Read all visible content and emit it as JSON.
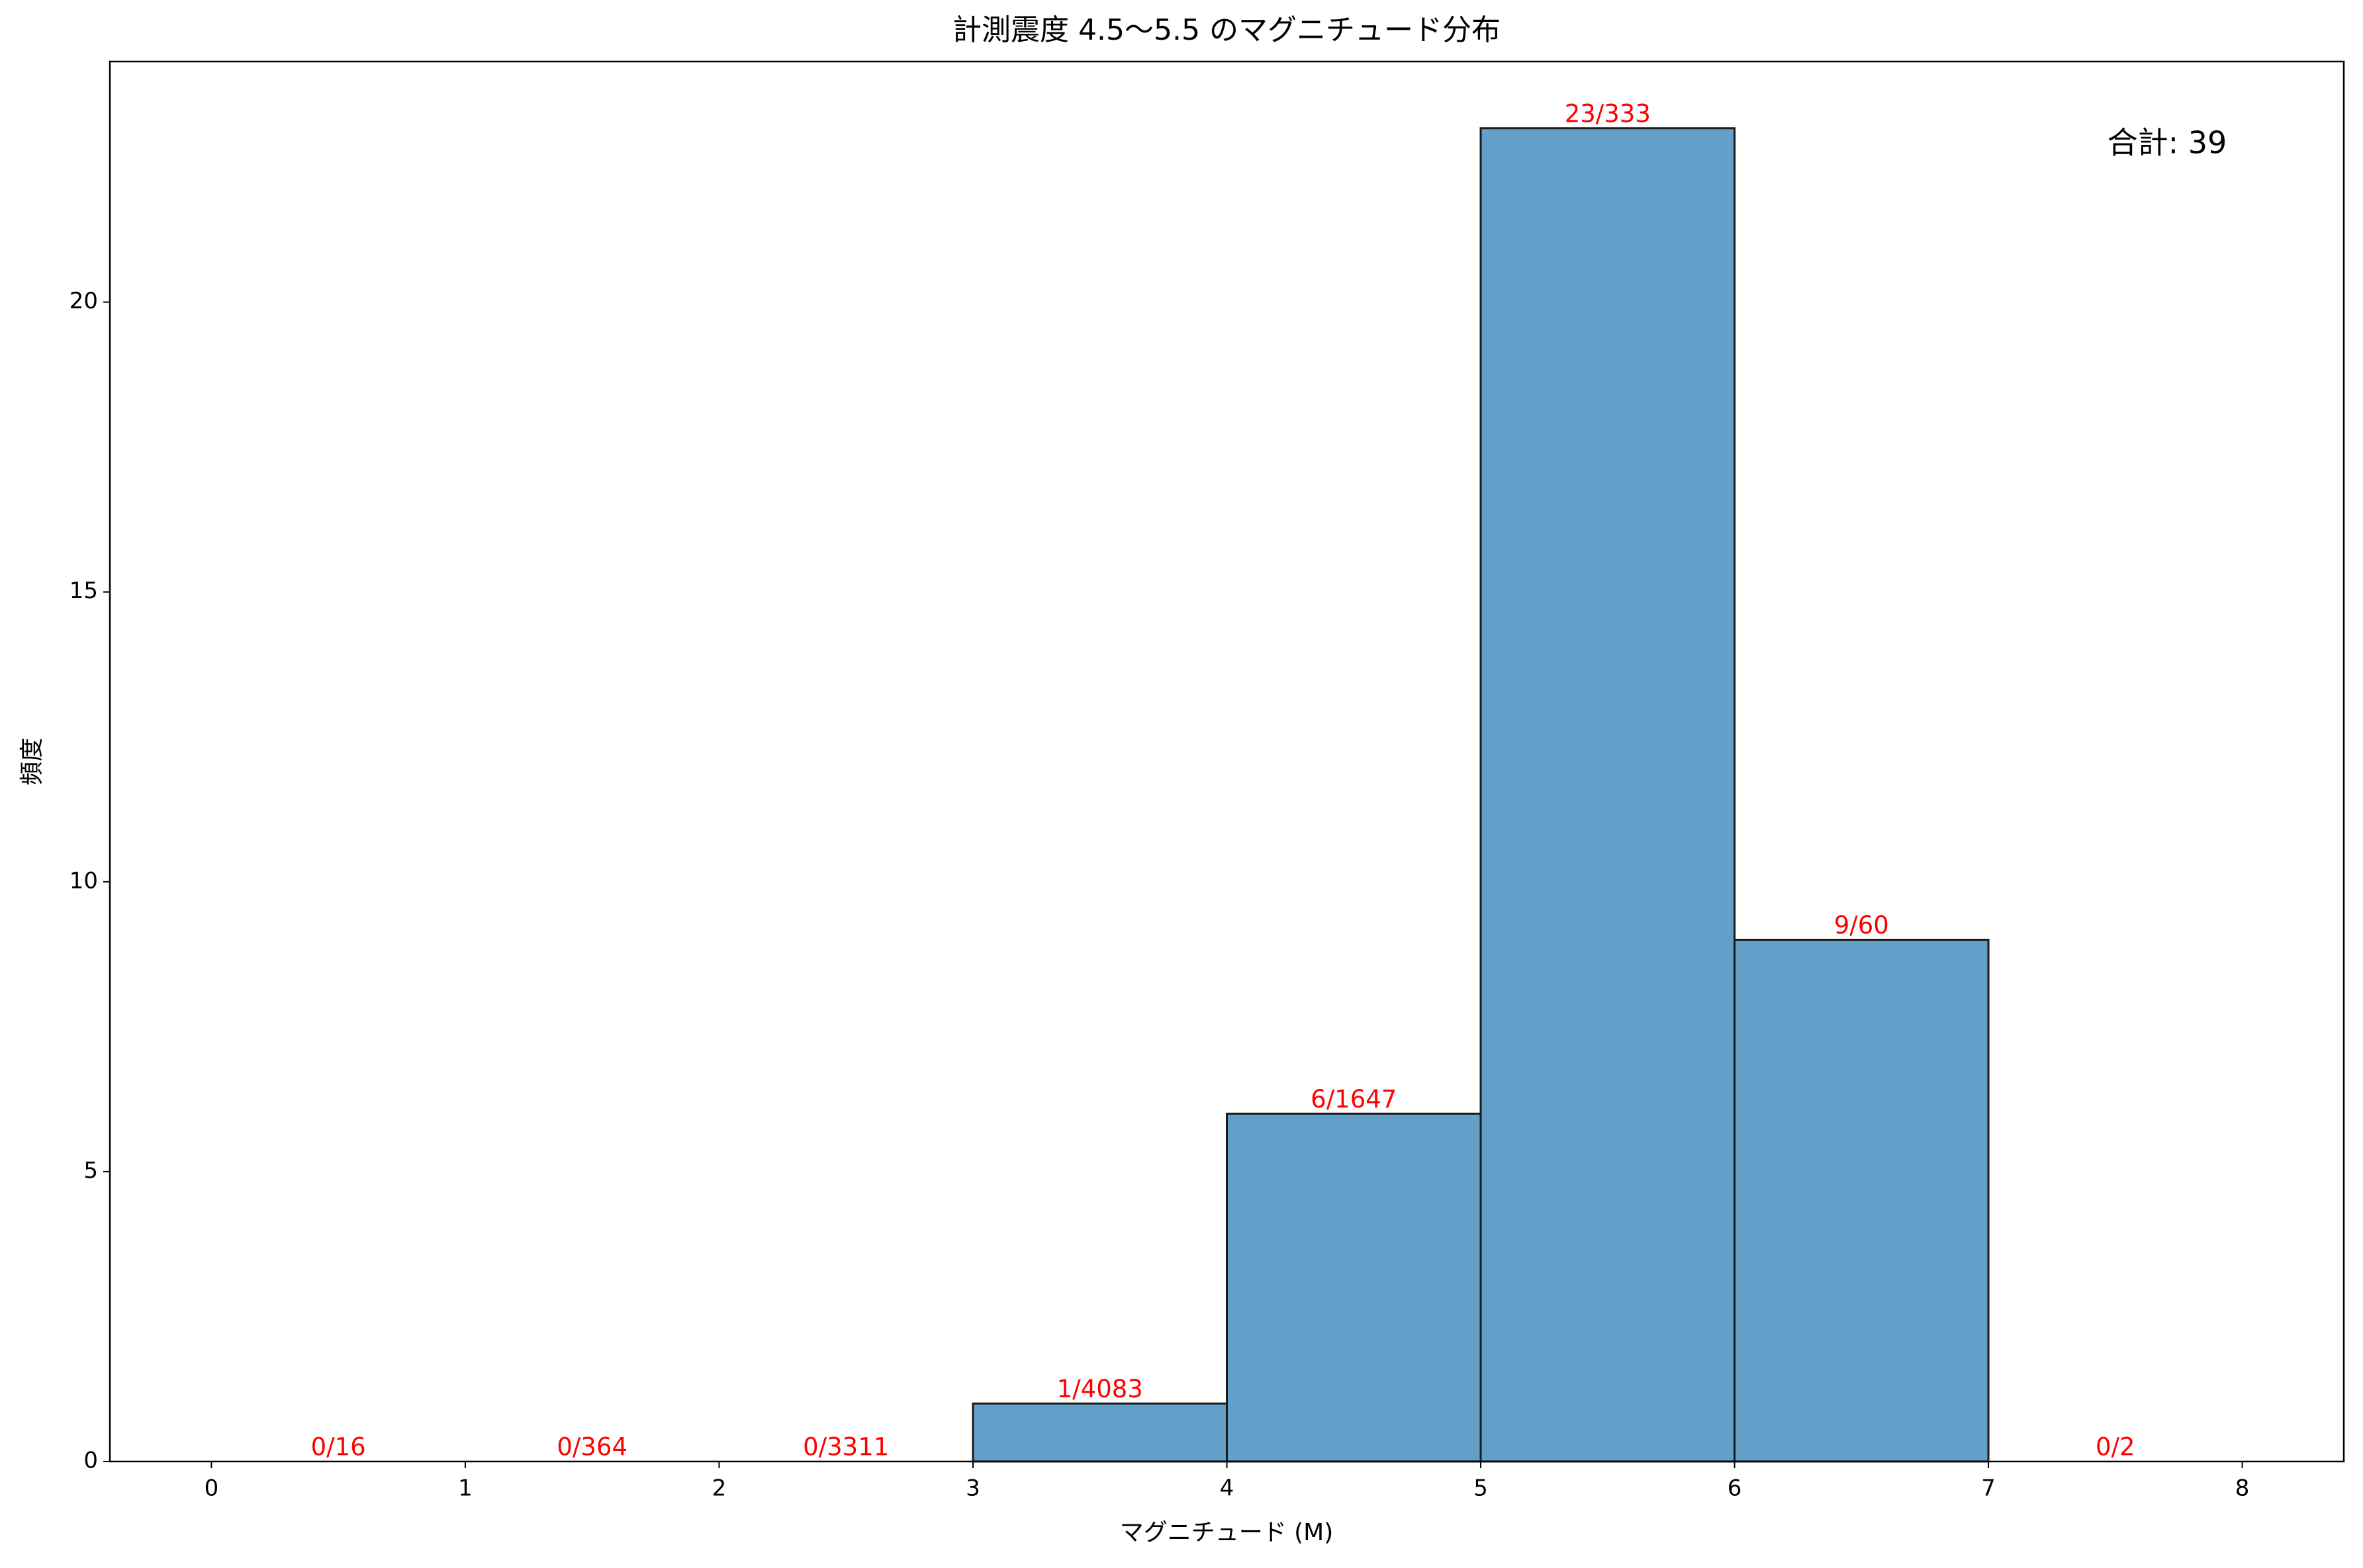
{
  "chart_data": {
    "type": "histogram",
    "title": "計測震度 4.5〜5.5 のマグニチュード分布",
    "x_label": "マグニチュード (M)",
    "y_label": "頻度",
    "bins": [
      0,
      1,
      2,
      3,
      4,
      5,
      6,
      7,
      8
    ],
    "values": [
      0,
      0,
      0,
      1,
      6,
      23,
      9,
      0
    ],
    "value_labels": [
      "0/16",
      "0/364",
      "0/3311",
      "1/4083",
      "6/1647",
      "23/333",
      "9/60",
      "0/2"
    ],
    "color": "#62a0ca",
    "edge_color": "#1a1a1a",
    "annotation": "合計: 39",
    "annotation_color": "#ff0000",
    "xlim": [
      -0.4,
      8.4
    ],
    "xticks": [
      0,
      1,
      2,
      3,
      4,
      5,
      6,
      7,
      8
    ],
    "ylim": [
      0,
      24.15
    ],
    "yticks": [
      0,
      5,
      10,
      15,
      20
    ],
    "grid": false
  }
}
